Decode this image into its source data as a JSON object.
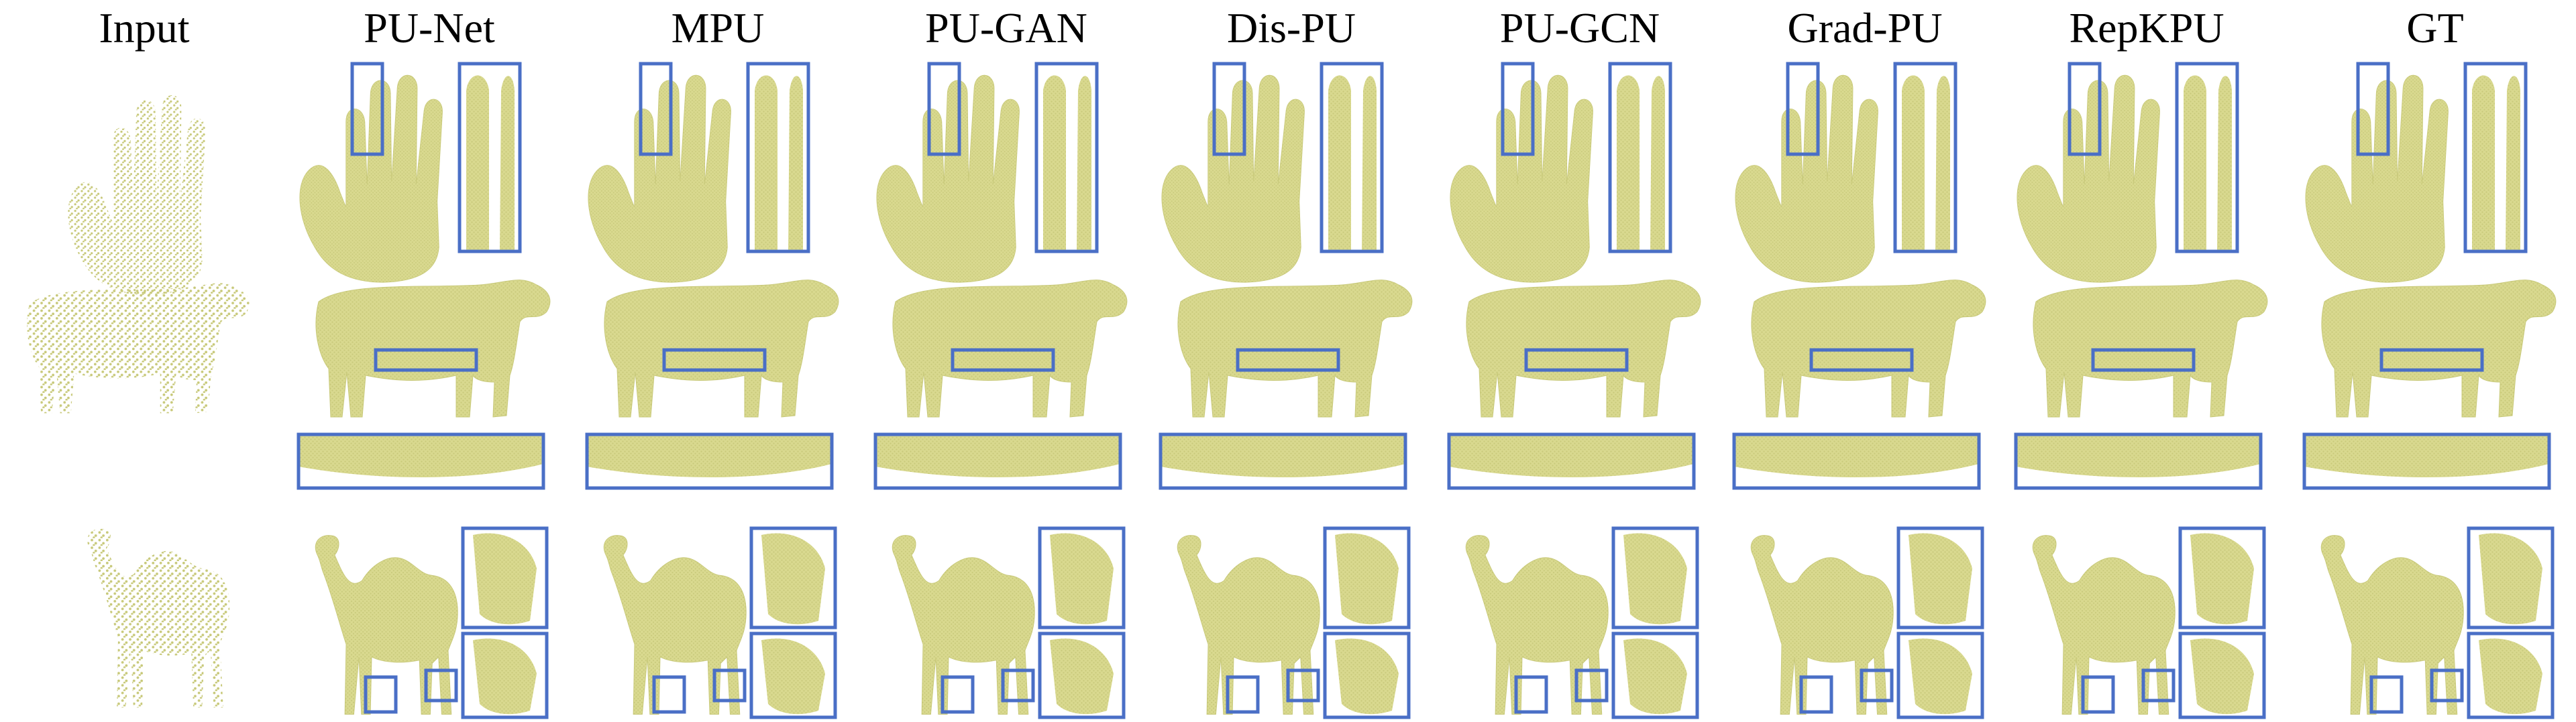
{
  "columns": [
    "Input",
    "PU-Net",
    "MPU",
    "PU-GAN",
    "Dis-PU",
    "PU-GCN",
    "Grad-PU",
    "RepKPU",
    "GT"
  ],
  "colors": {
    "point_fill": "#d9d98f",
    "point_shade": "#c8c97a",
    "zoom_box": "#4a6fc6",
    "header_text": "#000000"
  },
  "rows": [
    {
      "object": "hand",
      "zoom_boxes": 2
    },
    {
      "object": "cow",
      "zoom_boxes": 2
    },
    {
      "object": "camel",
      "zoom_boxes": 4
    }
  ]
}
